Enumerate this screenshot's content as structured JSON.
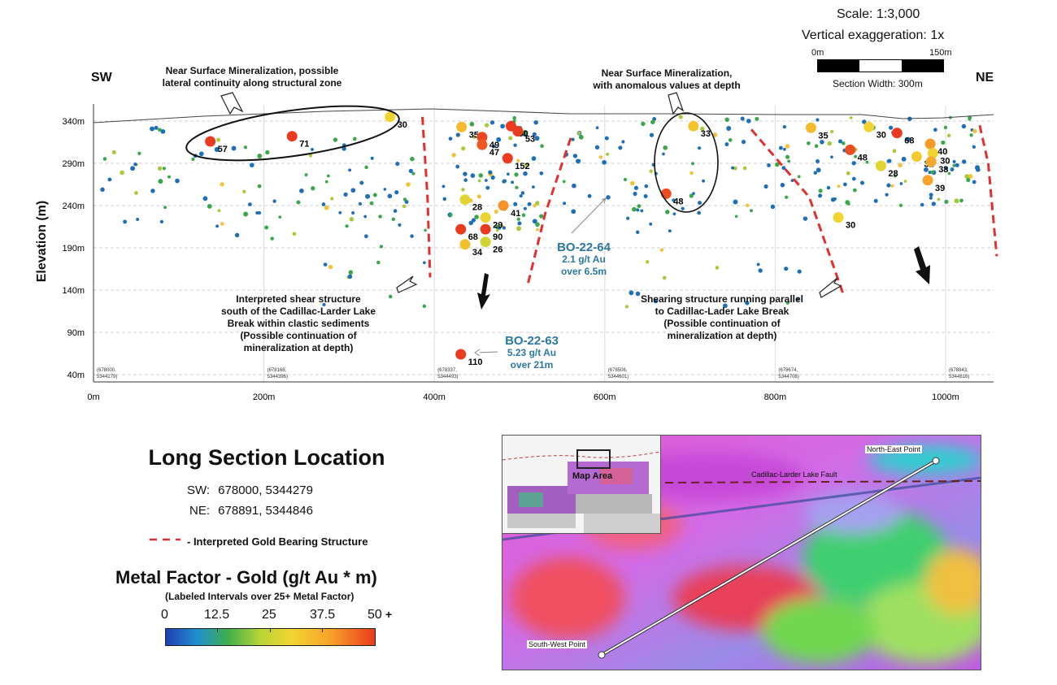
{
  "scale": {
    "scale_label": "Scale: 1:3,000",
    "vex_label": "Vertical exaggeration: 1x",
    "bar_start": "0m",
    "bar_end": "150m",
    "section_width": "Section Width: 300m"
  },
  "direction": {
    "sw": "SW",
    "ne": "NE"
  },
  "annotations": {
    "near_surface_1": [
      "Near Surface Mineralization, possible",
      "lateral continuity along structural zone"
    ],
    "near_surface_2": [
      "Near Surface Mineralization,",
      "with anomalous values at depth"
    ],
    "shear_1": [
      "Interpreted shear structure",
      "south of the Cadillac-Larder Lake",
      "Break within clastic sediments",
      "(Possible continuation of",
      "mineralization at depth)"
    ],
    "shear_2": [
      "Shearing structure running parallel",
      "to Cadillac-Lader Lake Break",
      "(Possible continuation of",
      "mineralization at depth)"
    ]
  },
  "drillholes": {
    "bo64": {
      "name": "BO-22-64",
      "grade": "2.1 g/t Au",
      "interval": "over 6.5m"
    },
    "bo63": {
      "name": "BO-22-63",
      "grade": "5.23 g/t Au",
      "interval": "over 21m"
    }
  },
  "chart_data": {
    "type": "scatter",
    "title": "",
    "xlabel": "",
    "ylabel": "Elevation (m)",
    "xlim": [
      0,
      1050
    ],
    "ylim": [
      40,
      360
    ],
    "x_ticks": [
      "0m",
      "200m",
      "400m",
      "600m",
      "800m",
      "1000m"
    ],
    "y_ticks": [
      "340m",
      "290m",
      "240m",
      "190m",
      "140m",
      "90m",
      "40m"
    ],
    "grid": true,
    "section_stations": [
      {
        "x": 0,
        "label": [
          "(678000,",
          "5344279)"
        ]
      },
      {
        "x": 200,
        "label": [
          "(678168,",
          "5344396)"
        ]
      },
      {
        "x": 400,
        "label": [
          "(678337,",
          "5344493)"
        ]
      },
      {
        "x": 600,
        "label": [
          "(678506,",
          "5344601)"
        ]
      },
      {
        "x": 800,
        "label": [
          "(678674,",
          "5344708)"
        ]
      },
      {
        "x": 1000,
        "label": [
          "(678843,",
          "5344816)"
        ]
      }
    ],
    "labeled_intervals": [
      {
        "x": 137,
        "y": 316,
        "metal_factor": 57
      },
      {
        "x": 233,
        "y": 322,
        "metal_factor": 71
      },
      {
        "x": 348,
        "y": 345,
        "metal_factor": 30
      },
      {
        "x": 432,
        "y": 333,
        "metal_factor": 35
      },
      {
        "x": 456,
        "y": 321,
        "metal_factor": 49
      },
      {
        "x": 456,
        "y": 312,
        "metal_factor": 47
      },
      {
        "x": 490,
        "y": 334,
        "metal_factor": 50
      },
      {
        "x": 498,
        "y": 328,
        "metal_factor": 53
      },
      {
        "x": 486,
        "y": 296,
        "metal_factor": 152
      },
      {
        "x": 436,
        "y": 247,
        "metal_factor": 28
      },
      {
        "x": 481,
        "y": 240,
        "metal_factor": 41
      },
      {
        "x": 460,
        "y": 226,
        "metal_factor": 29
      },
      {
        "x": 431,
        "y": 212,
        "metal_factor": 68
      },
      {
        "x": 460,
        "y": 212,
        "metal_factor": 90
      },
      {
        "x": 436,
        "y": 194,
        "metal_factor": 34
      },
      {
        "x": 460,
        "y": 197,
        "metal_factor": 26
      },
      {
        "x": 431,
        "y": 64,
        "metal_factor": 110
      },
      {
        "x": 704,
        "y": 334,
        "metal_factor": 33
      },
      {
        "x": 672,
        "y": 254,
        "metal_factor": 48
      },
      {
        "x": 842,
        "y": 332,
        "metal_factor": 35
      },
      {
        "x": 910,
        "y": 333,
        "metal_factor": 30
      },
      {
        "x": 943,
        "y": 326,
        "metal_factor": 68
      },
      {
        "x": 888,
        "y": 306,
        "metal_factor": 48
      },
      {
        "x": 982,
        "y": 313,
        "metal_factor": 40
      },
      {
        "x": 985,
        "y": 302,
        "metal_factor": 30
      },
      {
        "x": 966,
        "y": 298,
        "metal_factor": 32
      },
      {
        "x": 983,
        "y": 292,
        "metal_factor": 38
      },
      {
        "x": 924,
        "y": 287,
        "metal_factor": 28
      },
      {
        "x": 979,
        "y": 270,
        "metal_factor": 39
      },
      {
        "x": 874,
        "y": 226,
        "metal_factor": 30
      }
    ],
    "interpreted_structures": [
      {
        "points": [
          [
            386,
            345
          ],
          [
            392,
            250
          ],
          [
            395,
            155
          ]
        ]
      },
      {
        "points": [
          [
            560,
            320
          ],
          [
            530,
            230
          ],
          [
            510,
            148
          ]
        ]
      },
      {
        "points": [
          [
            772,
            330
          ],
          [
            840,
            250
          ],
          [
            880,
            135
          ]
        ]
      },
      {
        "points": [
          [
            1040,
            335
          ],
          [
            1050,
            290
          ],
          [
            1060,
            180
          ]
        ]
      }
    ]
  },
  "legend": {
    "title": "Long Section Location",
    "sw_label": "SW:",
    "sw_value": "678000, 5344279",
    "ne_label": "NE:",
    "ne_value": "678891, 5344846",
    "structure_label": "- Interpreted Gold Bearing Structure",
    "structure_color": "#e03030",
    "mf_title": "Metal Factor - Gold (g/t Au * m)",
    "mf_subtitle": "(Labeled Intervals over 25+ Metal Factor)",
    "mf_ticks": [
      "0",
      "12.5",
      "25",
      "37.5",
      "50"
    ],
    "mf_plus": "+"
  },
  "map": {
    "north_east": "North-East Point",
    "south_west": "South-West Point",
    "fault": "Cadillac-Larder Lake Fault",
    "map_area": "Map Area"
  }
}
